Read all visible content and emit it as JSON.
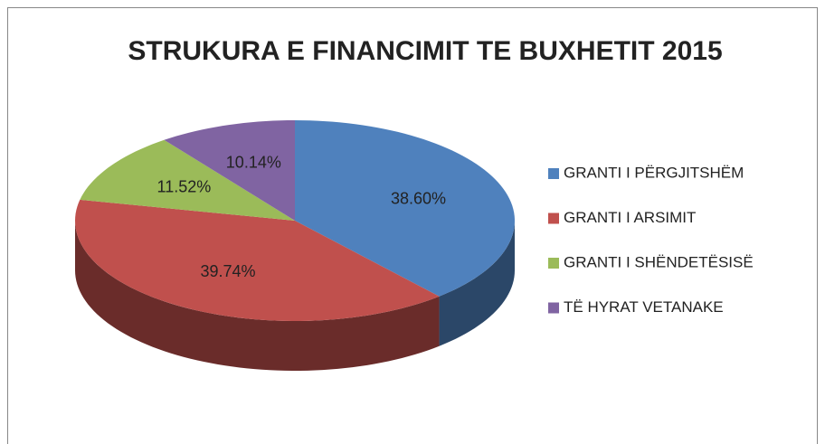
{
  "chart_data": {
    "type": "pie",
    "title": "STRUKURA E FINANCIMIT TE BUXHETIT 2015",
    "categories": [
      "GRANTI I PËRGJITSHËM",
      "GRANTI I ARSIMIT",
      "GRANTI I SHËNDETËSISË",
      "TË HYRAT VETANAKE"
    ],
    "values": [
      38.6,
      39.74,
      11.52,
      10.14
    ],
    "value_labels": [
      "38.60%",
      "39.74%",
      "11.52%",
      "10.14%"
    ],
    "colors": [
      "#4f81bd",
      "#c0504d",
      "#9bbb59",
      "#8064a2"
    ],
    "legend": "right"
  }
}
